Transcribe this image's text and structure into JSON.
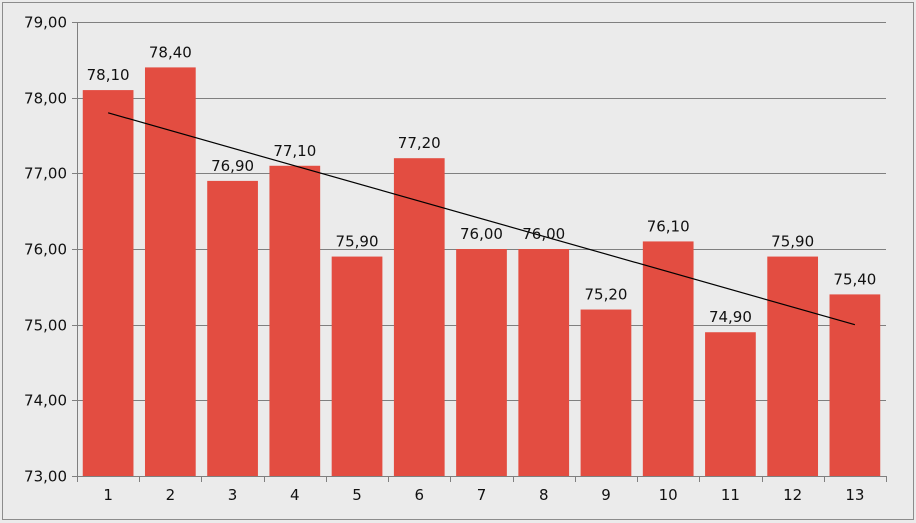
{
  "chart_data": {
    "type": "bar",
    "categories": [
      "1",
      "2",
      "3",
      "4",
      "5",
      "6",
      "7",
      "8",
      "9",
      "10",
      "11",
      "12",
      "13"
    ],
    "values": [
      78.1,
      78.4,
      76.9,
      77.1,
      75.9,
      77.2,
      76.0,
      76.0,
      75.2,
      76.1,
      74.9,
      75.9,
      75.4
    ],
    "value_labels": [
      "78,10",
      "78,40",
      "76,90",
      "77,10",
      "75,90",
      "77,20",
      "76,00",
      "76,00",
      "75,20",
      "76,10",
      "74,90",
      "75,90",
      "75,40"
    ],
    "y_ticks": [
      73,
      74,
      75,
      76,
      77,
      78,
      79
    ],
    "y_tick_labels": [
      "73,00",
      "74,00",
      "75,00",
      "76,00",
      "77,00",
      "78,00",
      "79,00"
    ],
    "ylim": [
      73,
      79
    ],
    "grid": true,
    "legend": "none",
    "trendline": {
      "type": "linear",
      "start": 77.8,
      "end": 75.0
    },
    "colors": {
      "bar": "#e34d41",
      "trendline": "#000000",
      "grid": "#7f7f7f",
      "background": "#ebebeb"
    }
  }
}
